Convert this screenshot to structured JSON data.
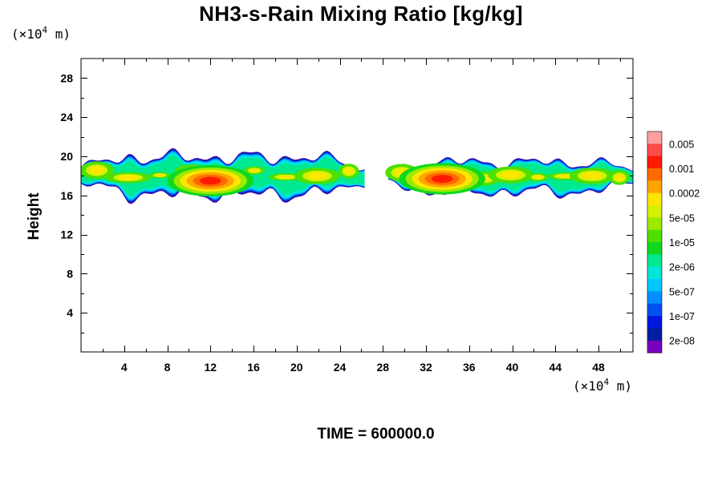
{
  "chart_data": {
    "type": "heatmap",
    "title": "NH3-s-Rain Mixing Ratio [kg/kg]",
    "ylabel": "Height",
    "xlabel": "",
    "x_unit": {
      "prefix": "(×10",
      "exp": "4",
      "suffix": " m)"
    },
    "y_unit": {
      "prefix": "(×10",
      "exp": "4",
      "suffix": " m)"
    },
    "xlim": [
      0,
      51.2
    ],
    "ylim": [
      0,
      30
    ],
    "x_ticks": [
      4,
      8,
      12,
      16,
      20,
      24,
      28,
      32,
      36,
      40,
      44,
      48
    ],
    "y_ticks": [
      4,
      8,
      12,
      16,
      20,
      24,
      28
    ],
    "legend_position": "right",
    "colorbar": {
      "labels": [
        "0.005",
        "0.001",
        "0.0002",
        "5e-05",
        "1e-05",
        "2e-06",
        "5e-07",
        "1e-07",
        "2e-08"
      ],
      "colors": [
        "#ff9f9f",
        "#ff4a4a",
        "#ff1a00",
        "#ff6a00",
        "#ffa500",
        "#ffe600",
        "#d7f000",
        "#9aea00",
        "#4ee000",
        "#10d81e",
        "#00e890",
        "#00e6d8",
        "#00c8ff",
        "#0090ff",
        "#0050f0",
        "#0018e0",
        "#001ea0",
        "#7a00c0"
      ]
    },
    "footer": "TIME = 600000.0",
    "regions": [
      {
        "name": "left cloud band",
        "x_range": [
          0,
          26.3
        ],
        "z_base": 16.3,
        "z_top": 19.9
      },
      {
        "name": "right cloud band",
        "x_range": [
          28.5,
          51.2
        ],
        "z_base": 16.5,
        "z_top": 19.4
      }
    ],
    "maxima": [
      {
        "x": 12,
        "z": 17.5,
        "level": "0.001"
      },
      {
        "x": 33.5,
        "z": 17.7,
        "level": "0.001"
      }
    ]
  }
}
